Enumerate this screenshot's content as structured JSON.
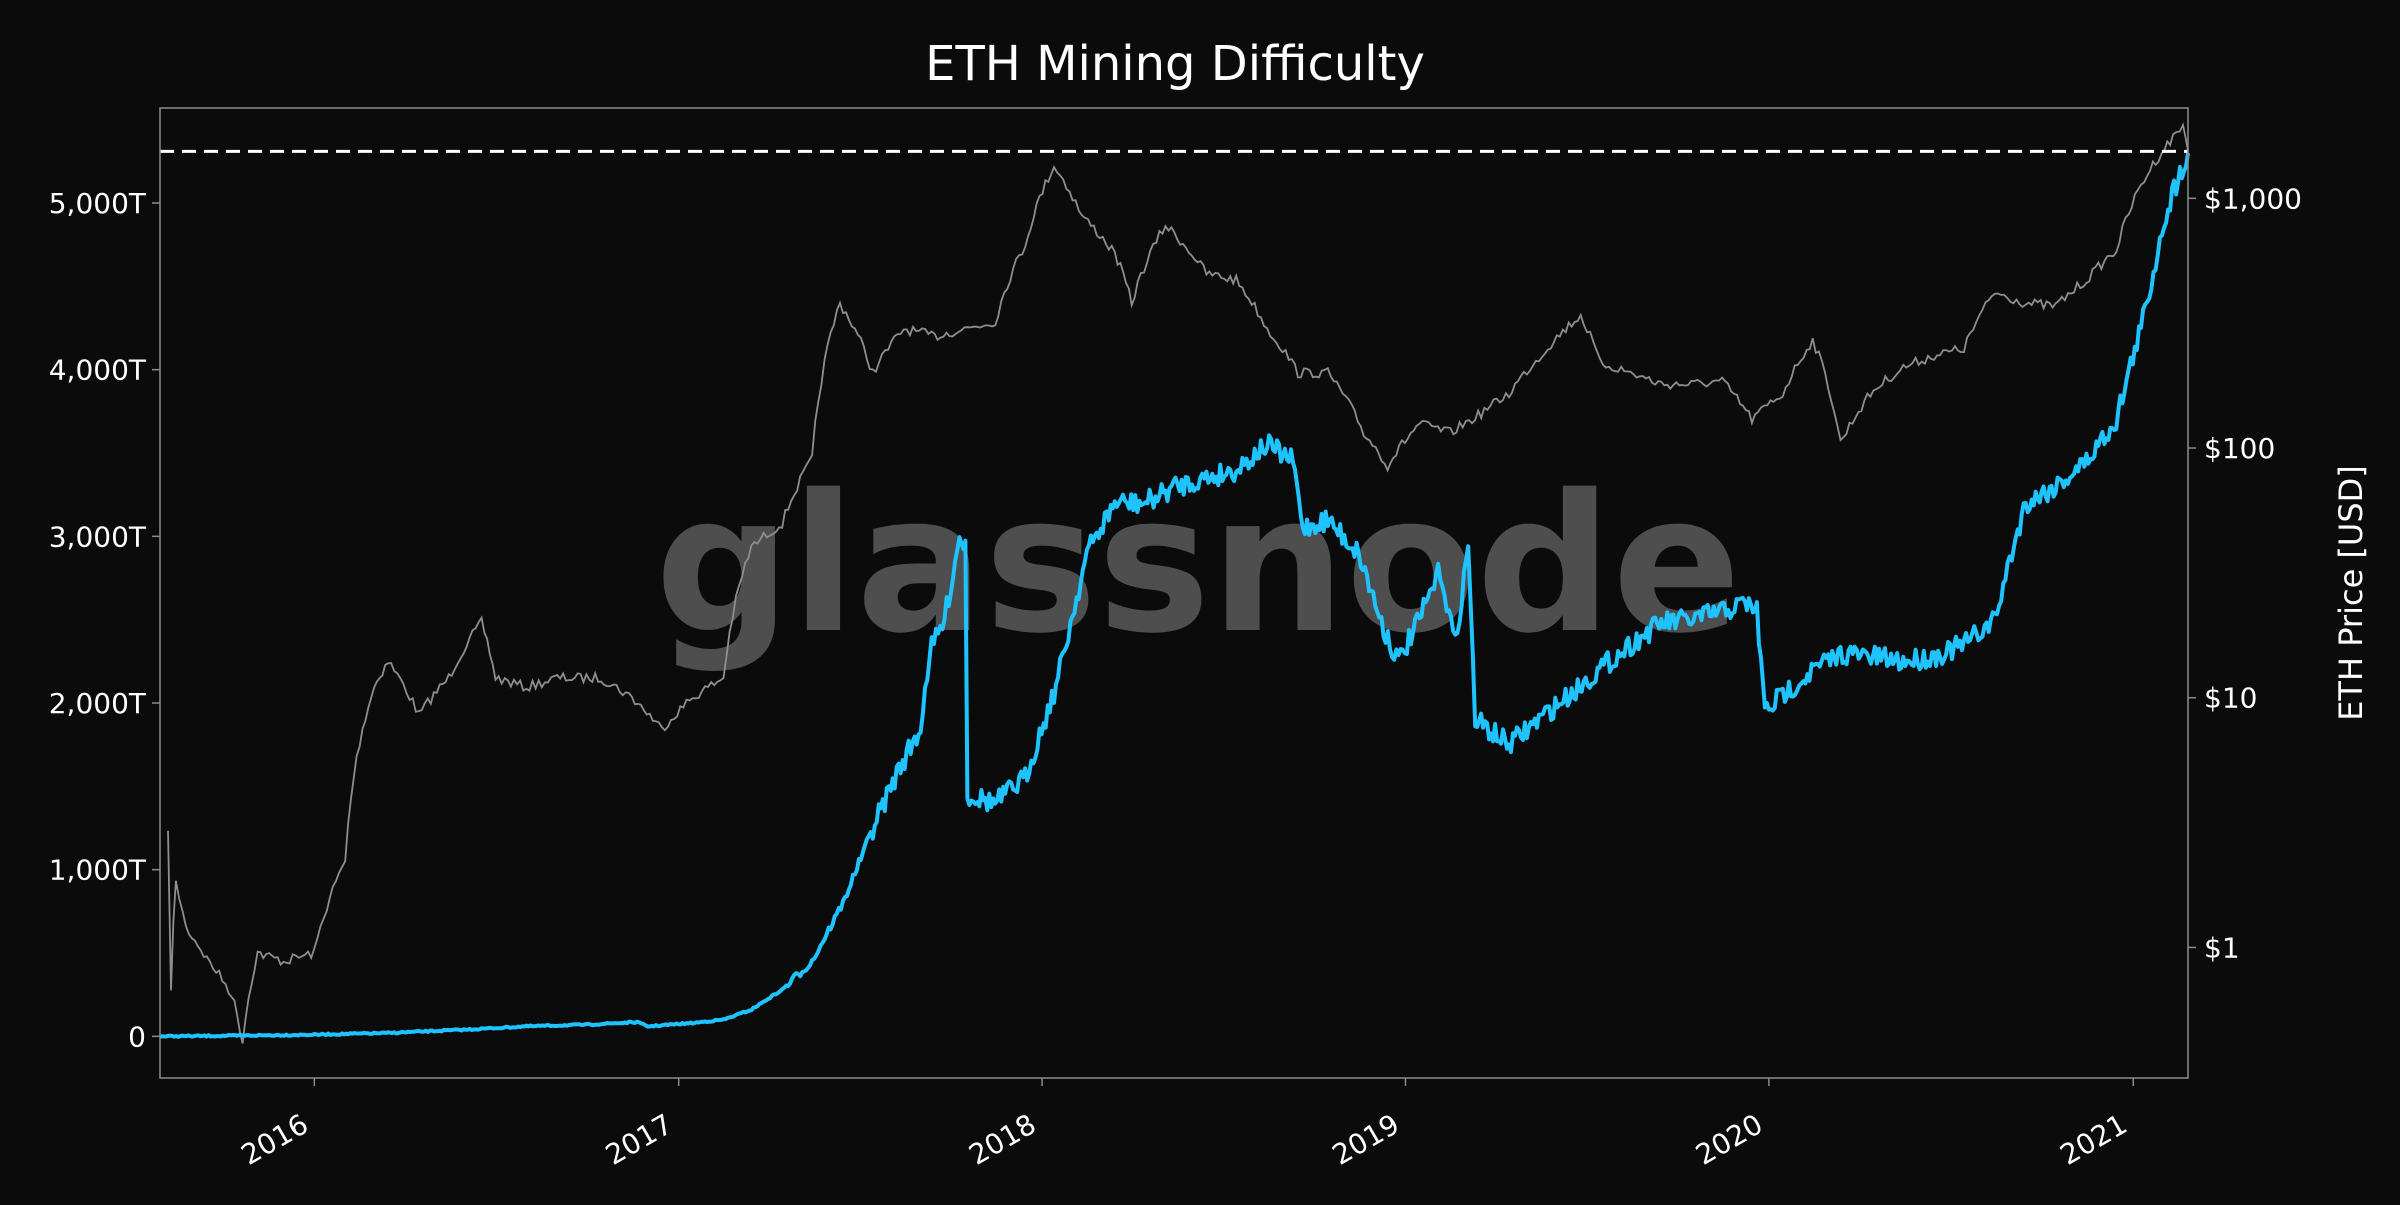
{
  "colors": {
    "background": "#0b0b0b",
    "frame": "#8c8c8c",
    "text": "#ffffff",
    "difficulty_series": "#1ec3ff",
    "price_series": "#8e8e8e",
    "ath_line": "#ffffff",
    "watermark": "#5f5f5f"
  },
  "chart_data": {
    "type": "line",
    "title": "ETH Mining Difficulty",
    "watermark": "glassnode",
    "xlabel": "",
    "ylabel_left": "",
    "ylabel_right": "ETH Price [USD]",
    "x_range": [
      "2015-07-30",
      "2021-02-25"
    ],
    "x_ticks": [
      {
        "date": "2016-01-01",
        "label": "2016"
      },
      {
        "date": "2017-01-01",
        "label": "2017"
      },
      {
        "date": "2018-01-01",
        "label": "2018"
      },
      {
        "date": "2019-01-01",
        "label": "2019"
      },
      {
        "date": "2020-01-01",
        "label": "2020"
      },
      {
        "date": "2021-01-01",
        "label": "2021"
      }
    ],
    "y_left": {
      "range": [
        -250,
        5570
      ],
      "ticks": [
        {
          "value": 0,
          "label": "0"
        },
        {
          "value": 1000,
          "label": "1,000T"
        },
        {
          "value": 2000,
          "label": "2,000T"
        },
        {
          "value": 3000,
          "label": "3,000T"
        },
        {
          "value": 4000,
          "label": "4,000T"
        },
        {
          "value": 5000,
          "label": "5,000T"
        }
      ]
    },
    "y_right": {
      "scale": "log",
      "range": [
        0.3,
        2300
      ],
      "ticks": [
        {
          "value": 1,
          "label": "$1"
        },
        {
          "value": 10,
          "label": "$10"
        },
        {
          "value": 100,
          "label": "$100"
        },
        {
          "value": 1000,
          "label": "$1,000"
        }
      ]
    },
    "ath_line": {
      "value": 5310,
      "style": "dashed"
    },
    "series": [
      {
        "axis": "left",
        "points": [
          [
            "2015-07-30",
            0
          ],
          [
            "2015-10-01",
            3
          ],
          [
            "2016-01-01",
            10
          ],
          [
            "2016-03-15",
            20
          ],
          [
            "2016-06-01",
            40
          ],
          [
            "2016-08-01",
            60
          ],
          [
            "2016-10-01",
            70
          ],
          [
            "2016-11-20",
            85
          ],
          [
            "2016-12-01",
            60
          ],
          [
            "2017-01-15",
            80
          ],
          [
            "2017-02-15",
            100
          ],
          [
            "2017-03-15",
            160
          ],
          [
            "2017-04-15",
            280
          ],
          [
            "2017-05-15",
            450
          ],
          [
            "2017-06-15",
            800
          ],
          [
            "2017-07-15",
            1250
          ],
          [
            "2017-08-10",
            1600
          ],
          [
            "2017-09-01",
            1850
          ],
          [
            "2017-09-10",
            2300
          ],
          [
            "2017-09-25",
            2500
          ],
          [
            "2017-10-10",
            3000
          ],
          [
            "2017-10-16",
            2950
          ],
          [
            "2017-10-18",
            1450
          ],
          [
            "2017-11-15",
            1400
          ],
          [
            "2017-12-15",
            1550
          ],
          [
            "2018-01-15",
            2100
          ],
          [
            "2018-02-15",
            2900
          ],
          [
            "2018-03-15",
            3200
          ],
          [
            "2018-04-15",
            3200
          ],
          [
            "2018-05-15",
            3300
          ],
          [
            "2018-06-15",
            3350
          ],
          [
            "2018-07-15",
            3400
          ],
          [
            "2018-08-15",
            3550
          ],
          [
            "2018-09-10",
            3450
          ],
          [
            "2018-09-20",
            3050
          ],
          [
            "2018-10-15",
            3100
          ],
          [
            "2018-11-15",
            2900
          ],
          [
            "2018-12-10",
            2450
          ],
          [
            "2018-12-25",
            2250
          ],
          [
            "2019-01-15",
            2500
          ],
          [
            "2019-02-05",
            2800
          ],
          [
            "2019-02-20",
            2350
          ],
          [
            "2019-03-05",
            2950
          ],
          [
            "2019-03-12",
            1900
          ],
          [
            "2019-04-15",
            1750
          ],
          [
            "2019-05-15",
            1900
          ],
          [
            "2019-06-15",
            2050
          ],
          [
            "2019-07-15",
            2200
          ],
          [
            "2019-08-15",
            2350
          ],
          [
            "2019-09-15",
            2480
          ],
          [
            "2019-10-15",
            2500
          ],
          [
            "2019-11-15",
            2550
          ],
          [
            "2019-12-10",
            2600
          ],
          [
            "2019-12-20",
            2550
          ],
          [
            "2019-12-28",
            1950
          ],
          [
            "2020-01-15",
            2050
          ],
          [
            "2020-02-15",
            2200
          ],
          [
            "2020-03-15",
            2300
          ],
          [
            "2020-05-15",
            2250
          ],
          [
            "2020-06-15",
            2280
          ],
          [
            "2020-07-15",
            2350
          ],
          [
            "2020-08-15",
            2500
          ],
          [
            "2020-09-01",
            2900
          ],
          [
            "2020-09-15",
            3200
          ],
          [
            "2020-10-15",
            3300
          ],
          [
            "2020-11-15",
            3450
          ],
          [
            "2020-12-15",
            3700
          ],
          [
            "2021-01-15",
            4400
          ],
          [
            "2021-02-01",
            4900
          ],
          [
            "2021-02-15",
            5150
          ],
          [
            "2021-02-25",
            5300
          ]
        ]
      },
      {
        "axis": "right",
        "points": [
          [
            "2015-08-07",
            2.8
          ],
          [
            "2015-08-10",
            0.7
          ],
          [
            "2015-08-15",
            1.8
          ],
          [
            "2015-08-25",
            1.2
          ],
          [
            "2015-09-15",
            0.9
          ],
          [
            "2015-10-10",
            0.65
          ],
          [
            "2015-10-21",
            0.42
          ],
          [
            "2015-11-05",
            0.95
          ],
          [
            "2015-12-01",
            0.88
          ],
          [
            "2016-01-01",
            0.95
          ],
          [
            "2016-02-01",
            2.2
          ],
          [
            "2016-03-01",
            11
          ],
          [
            "2016-03-15",
            14
          ],
          [
            "2016-04-15",
            8.5
          ],
          [
            "2016-05-15",
            12
          ],
          [
            "2016-06-17",
            20
          ],
          [
            "2016-07-01",
            12
          ],
          [
            "2016-08-01",
            11
          ],
          [
            "2016-09-01",
            12
          ],
          [
            "2016-10-15",
            12
          ],
          [
            "2016-11-15",
            10
          ],
          [
            "2016-12-15",
            7.5
          ],
          [
            "2017-01-15",
            10
          ],
          [
            "2017-02-15",
            12
          ],
          [
            "2017-03-15",
            40
          ],
          [
            "2017-04-15",
            50
          ],
          [
            "2017-05-15",
            90
          ],
          [
            "2017-06-12",
            380
          ],
          [
            "2017-07-15",
            200
          ],
          [
            "2017-08-15",
            300
          ],
          [
            "2017-09-15",
            280
          ],
          [
            "2017-10-15",
            300
          ],
          [
            "2017-11-15",
            320
          ],
          [
            "2017-12-15",
            650
          ],
          [
            "2018-01-13",
            1350
          ],
          [
            "2018-02-10",
            850
          ],
          [
            "2018-03-15",
            600
          ],
          [
            "2018-04-01",
            380
          ],
          [
            "2018-05-05",
            780
          ],
          [
            "2018-06-15",
            500
          ],
          [
            "2018-07-15",
            470
          ],
          [
            "2018-08-15",
            300
          ],
          [
            "2018-09-15",
            200
          ],
          [
            "2018-10-15",
            200
          ],
          [
            "2018-11-20",
            115
          ],
          [
            "2018-12-14",
            85
          ],
          [
            "2019-01-15",
            125
          ],
          [
            "2019-02-15",
            115
          ],
          [
            "2019-03-15",
            135
          ],
          [
            "2019-04-15",
            165
          ],
          [
            "2019-05-15",
            230
          ],
          [
            "2019-06-26",
            340
          ],
          [
            "2019-07-15",
            220
          ],
          [
            "2019-08-15",
            200
          ],
          [
            "2019-09-15",
            180
          ],
          [
            "2019-10-15",
            180
          ],
          [
            "2019-11-15",
            185
          ],
          [
            "2019-12-15",
            130
          ],
          [
            "2020-01-15",
            165
          ],
          [
            "2020-02-14",
            270
          ],
          [
            "2020-03-13",
            105
          ],
          [
            "2020-04-15",
            170
          ],
          [
            "2020-05-15",
            210
          ],
          [
            "2020-06-15",
            235
          ],
          [
            "2020-07-15",
            250
          ],
          [
            "2020-08-15",
            420
          ],
          [
            "2020-09-15",
            380
          ],
          [
            "2020-10-15",
            370
          ],
          [
            "2020-11-15",
            470
          ],
          [
            "2020-12-15",
            620
          ],
          [
            "2021-01-15",
            1250
          ],
          [
            "2021-02-10",
            1750
          ],
          [
            "2021-02-20",
            1950
          ],
          [
            "2021-02-25",
            1550
          ]
        ]
      }
    ]
  }
}
